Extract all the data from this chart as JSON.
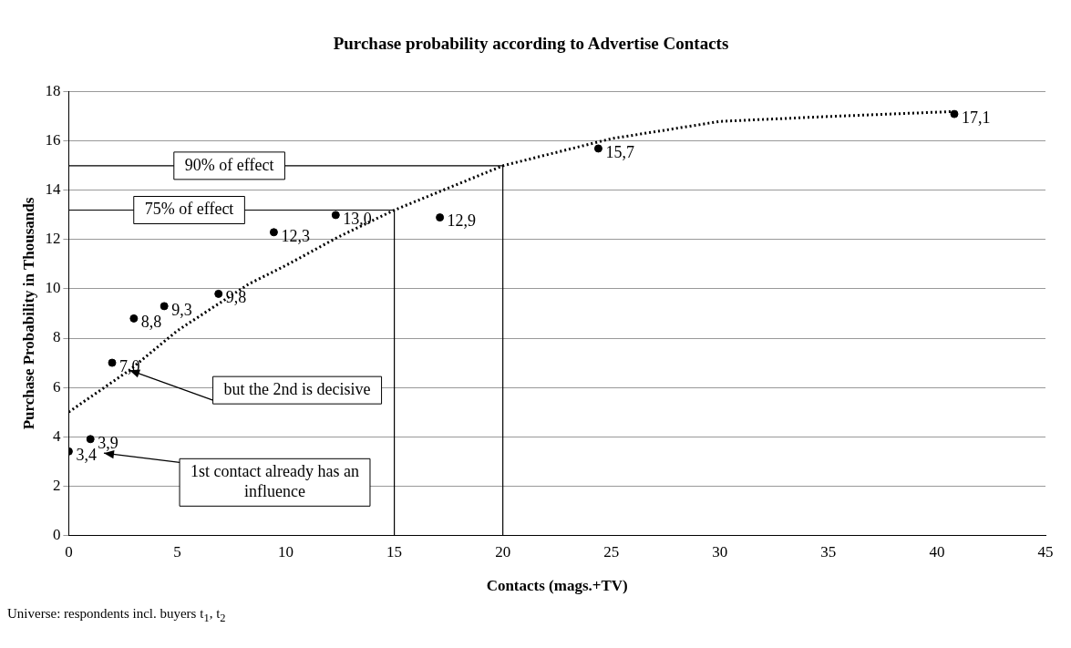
{
  "chart_data": {
    "type": "scatter",
    "title": "Purchase probability according to Advertise Contacts",
    "xlabel": "Contacts (mags.+TV)",
    "ylabel": "Purchase Probability in Thousands",
    "xlim": [
      0,
      45
    ],
    "xticks": [
      0,
      5,
      10,
      15,
      20,
      25,
      30,
      35,
      40,
      45
    ],
    "ylim": [
      0,
      18
    ],
    "yticks": [
      0,
      2,
      4,
      6,
      8,
      10,
      12,
      14,
      16,
      18
    ],
    "grid": "y",
    "series": [
      {
        "color": "#000000",
        "marker": "circle",
        "x": [
          0,
          1,
          2,
          3,
          4.4,
          6.9,
          9.45,
          12.3,
          17.1,
          24.4,
          40.8
        ],
        "values": [
          3.4,
          3.9,
          7.0,
          8.8,
          9.3,
          9.8,
          12.3,
          13.0,
          12.9,
          15.7,
          17.1
        ],
        "value_labels": [
          "3,4",
          "3,9",
          "7,0",
          "8,8",
          "9,3",
          "9,8",
          "12,3",
          "13,0",
          "12,9",
          "15,7",
          "17,1"
        ]
      },
      {
        "type": "line",
        "color": "#000000",
        "line_style": "dotted",
        "marker": "none",
        "x": [
          0,
          2.8,
          5,
          8.3,
          10,
          12.4,
          15,
          20,
          25,
          30,
          35,
          40.7
        ],
        "values": [
          5.0,
          6.7,
          8.3,
          10.2,
          10.95,
          12.1,
          13.2,
          15.0,
          16.1,
          16.8,
          17.0,
          17.2
        ]
      },
      {
        "type": "line",
        "name": "90% of effect",
        "color": "#000000",
        "line_style": "solid",
        "marker": "none",
        "x": [
          0,
          20,
          20
        ],
        "values": [
          15,
          15,
          0
        ]
      },
      {
        "type": "line",
        "name": "75% of effect",
        "color": "#000000",
        "line_style": "solid",
        "marker": "none",
        "x": [
          0,
          15,
          15
        ],
        "values": [
          13.2,
          13.2,
          0
        ]
      }
    ],
    "annotations": [
      {
        "text": "but the 2nd is decisive",
        "x": 2.8,
        "y": 6.7
      },
      "1st contact already has an influence",
      "Universe: respondents incl. buyers t$_{1}$, t$_{2}$"
    ]
  }
}
